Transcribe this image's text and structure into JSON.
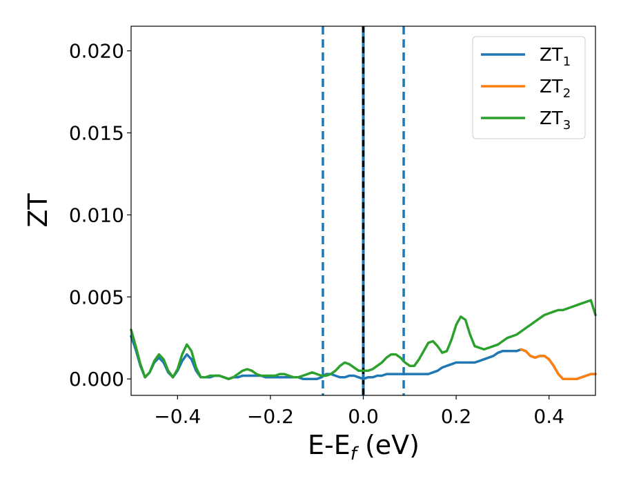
{
  "chart_data": {
    "type": "line",
    "xlabel": {
      "main": "E-E",
      "sub": "f",
      "tail": " (eV)"
    },
    "ylabel": "ZT",
    "xlim": [
      -0.5,
      0.5
    ],
    "ylim": [
      -0.001,
      0.0215
    ],
    "xticks": [
      {
        "value": -0.4,
        "label": "−0.4"
      },
      {
        "value": -0.2,
        "label": "−0.2"
      },
      {
        "value": 0.0,
        "label": "0.0"
      },
      {
        "value": 0.2,
        "label": "0.2"
      },
      {
        "value": 0.4,
        "label": "0.4"
      }
    ],
    "yticks": [
      {
        "value": 0.0,
        "label": "0.000"
      },
      {
        "value": 0.005,
        "label": "0.005"
      },
      {
        "value": 0.01,
        "label": "0.010"
      },
      {
        "value": 0.015,
        "label": "0.015"
      },
      {
        "value": 0.02,
        "label": "0.020"
      }
    ],
    "grid": false,
    "legend": {
      "placement": "top-right"
    },
    "vlines": [
      {
        "x": -0.087,
        "style": "dashed",
        "color": "#1f77b4"
      },
      {
        "x": 0.0,
        "style": "solid",
        "color": "#1f77b4"
      },
      {
        "x": 0.0,
        "style": "dashed",
        "color": "#000000"
      },
      {
        "x": 0.087,
        "style": "dashed",
        "color": "#1f77b4"
      }
    ],
    "series": [
      {
        "name": "ZT",
        "sub": "1",
        "color": "#1f77b4",
        "x": [
          -0.5,
          -0.49,
          -0.48,
          -0.47,
          -0.46,
          -0.45,
          -0.44,
          -0.43,
          -0.42,
          -0.41,
          -0.4,
          -0.39,
          -0.38,
          -0.37,
          -0.36,
          -0.35,
          -0.34,
          -0.33,
          -0.32,
          -0.31,
          -0.3,
          -0.29,
          -0.28,
          -0.27,
          -0.26,
          -0.25,
          -0.24,
          -0.23,
          -0.22,
          -0.21,
          -0.2,
          -0.19,
          -0.18,
          -0.17,
          -0.16,
          -0.15,
          -0.14,
          -0.13,
          -0.12,
          -0.11,
          -0.1,
          -0.09,
          -0.08,
          -0.07,
          -0.06,
          -0.05,
          -0.04,
          -0.03,
          -0.02,
          -0.01,
          0.0,
          0.01,
          0.02,
          0.03,
          0.04,
          0.05,
          0.06,
          0.07,
          0.08,
          0.09,
          0.1,
          0.11,
          0.12,
          0.13,
          0.14,
          0.15,
          0.16,
          0.17,
          0.18,
          0.19,
          0.2,
          0.21,
          0.22,
          0.23,
          0.24,
          0.25,
          0.26,
          0.27,
          0.28,
          0.29,
          0.3,
          0.31,
          0.32,
          0.33,
          0.34,
          0.35,
          0.36,
          0.37,
          0.38,
          0.39,
          0.4,
          0.41,
          0.42,
          0.43,
          0.44,
          0.45,
          0.46,
          0.47,
          0.48,
          0.49,
          0.5
        ],
        "y": [
          0.0026,
          0.0018,
          0.0008,
          0.0001,
          0.0004,
          0.001,
          0.0013,
          0.001,
          0.0004,
          0.0001,
          0.0005,
          0.0011,
          0.0015,
          0.0012,
          0.0005,
          0.0001,
          0.0001,
          0.0001,
          0.0002,
          0.0002,
          0.0001,
          0.0,
          0.0001,
          0.0001,
          0.0002,
          0.0002,
          0.0002,
          0.0002,
          0.0002,
          0.0001,
          0.0001,
          0.0001,
          0.0001,
          0.0001,
          0.0001,
          0.0001,
          0.0001,
          0.0,
          0.0,
          0.0,
          0.0,
          0.0001,
          0.0003,
          0.0003,
          0.0002,
          0.0001,
          0.0001,
          0.0002,
          0.0002,
          0.0001,
          0.0,
          0.0001,
          0.0001,
          0.0002,
          0.0002,
          0.0003,
          0.0003,
          0.0003,
          0.0003,
          0.0003,
          0.0003,
          0.0003,
          0.0003,
          0.0003,
          0.0003,
          0.0004,
          0.0005,
          0.0007,
          0.0008,
          0.0009,
          0.001,
          0.001,
          0.001,
          0.001,
          0.001,
          0.0011,
          0.0012,
          0.0013,
          0.0014,
          0.0016,
          0.0017,
          0.0017,
          0.0017,
          0.0017,
          0.0018,
          0.0017,
          0.0014,
          0.0013,
          0.0014,
          0.0014,
          0.0012,
          0.0008,
          0.0003,
          0.0,
          0.0,
          0.0,
          0.0,
          0.0001,
          0.0002,
          0.0003,
          0.0003
        ]
      },
      {
        "name": "ZT",
        "sub": "2",
        "color": "#ff7f0e",
        "x": [
          0.34,
          0.35,
          0.36,
          0.37,
          0.38,
          0.39,
          0.4,
          0.41,
          0.42,
          0.43,
          0.44,
          0.45,
          0.46,
          0.47,
          0.48,
          0.49,
          0.5
        ],
        "y": [
          0.0018,
          0.0017,
          0.0014,
          0.0013,
          0.0014,
          0.0014,
          0.0012,
          0.0008,
          0.0003,
          0.0,
          0.0,
          0.0,
          0.0,
          0.0001,
          0.0002,
          0.0003,
          0.0003
        ]
      },
      {
        "name": "ZT",
        "sub": "3",
        "color": "#2ca02c",
        "x": [
          -0.5,
          -0.49,
          -0.48,
          -0.47,
          -0.46,
          -0.45,
          -0.44,
          -0.43,
          -0.42,
          -0.41,
          -0.4,
          -0.39,
          -0.38,
          -0.37,
          -0.36,
          -0.35,
          -0.34,
          -0.33,
          -0.32,
          -0.31,
          -0.3,
          -0.29,
          -0.28,
          -0.27,
          -0.26,
          -0.25,
          -0.24,
          -0.23,
          -0.22,
          -0.21,
          -0.2,
          -0.19,
          -0.18,
          -0.17,
          -0.16,
          -0.15,
          -0.14,
          -0.13,
          -0.12,
          -0.11,
          -0.1,
          -0.09,
          -0.08,
          -0.07,
          -0.06,
          -0.05,
          -0.04,
          -0.03,
          -0.02,
          -0.01,
          0.0,
          0.01,
          0.02,
          0.03,
          0.04,
          0.05,
          0.06,
          0.07,
          0.08,
          0.09,
          0.1,
          0.11,
          0.12,
          0.13,
          0.14,
          0.15,
          0.16,
          0.17,
          0.18,
          0.19,
          0.2,
          0.21,
          0.22,
          0.23,
          0.24,
          0.25,
          0.26,
          0.27,
          0.28,
          0.29,
          0.3,
          0.31,
          0.32,
          0.33,
          0.34,
          0.35,
          0.36,
          0.37,
          0.38,
          0.39,
          0.4,
          0.41,
          0.42,
          0.43,
          0.44,
          0.45,
          0.46,
          0.47,
          0.48,
          0.49,
          0.5
        ],
        "y": [
          0.003,
          0.002,
          0.0009,
          0.0001,
          0.0004,
          0.0011,
          0.0015,
          0.0012,
          0.0005,
          0.0001,
          0.0006,
          0.0015,
          0.0021,
          0.0017,
          0.0007,
          0.0001,
          0.0001,
          0.0002,
          0.0002,
          0.0002,
          0.0001,
          0.0,
          0.0001,
          0.0003,
          0.0005,
          0.0006,
          0.0005,
          0.0003,
          0.0002,
          0.0002,
          0.0002,
          0.0002,
          0.0003,
          0.0003,
          0.0002,
          0.0001,
          0.0001,
          0.0002,
          0.0003,
          0.0004,
          0.0003,
          0.0002,
          0.0002,
          0.0003,
          0.0005,
          0.0008,
          0.001,
          0.0009,
          0.0007,
          0.0005,
          0.0005,
          0.0005,
          0.0006,
          0.0008,
          0.001,
          0.0013,
          0.0015,
          0.0015,
          0.0013,
          0.001,
          0.0008,
          0.0008,
          0.0012,
          0.0017,
          0.0022,
          0.0023,
          0.002,
          0.0016,
          0.0017,
          0.0024,
          0.0033,
          0.0038,
          0.0036,
          0.0027,
          0.002,
          0.0019,
          0.0018,
          0.0019,
          0.002,
          0.0021,
          0.0023,
          0.0025,
          0.0026,
          0.0027,
          0.0029,
          0.0031,
          0.0033,
          0.0035,
          0.0037,
          0.0039,
          0.004,
          0.0041,
          0.0042,
          0.0042,
          0.0043,
          0.0044,
          0.0045,
          0.0046,
          0.0047,
          0.0048,
          0.0039
        ]
      }
    ]
  }
}
